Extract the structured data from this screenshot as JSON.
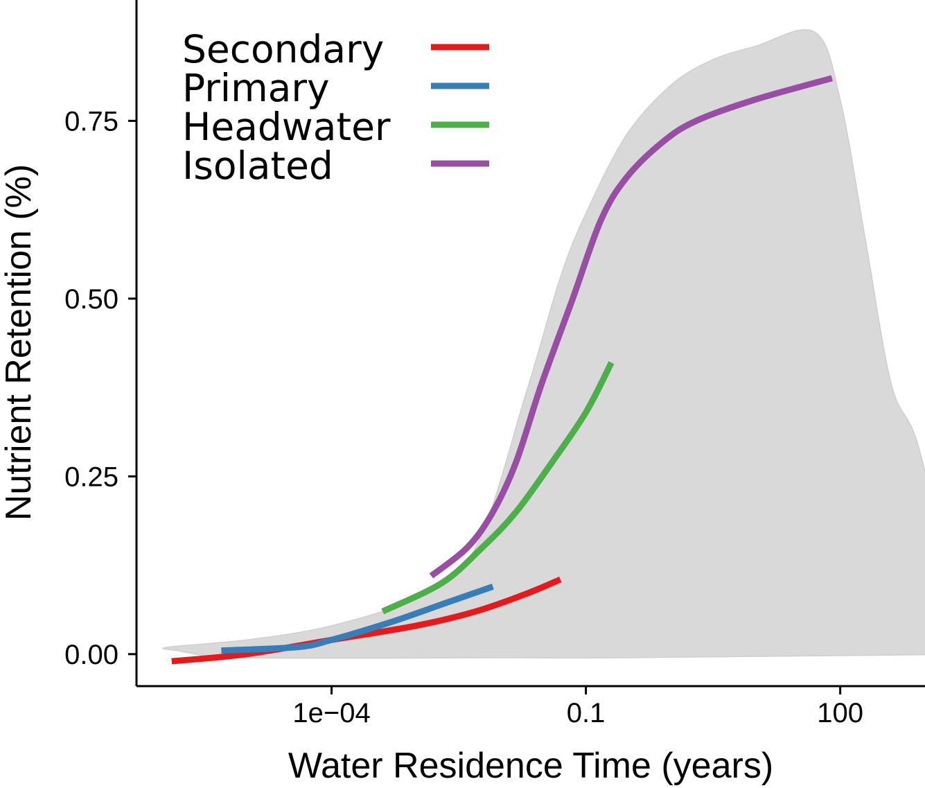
{
  "chart_data": {
    "type": "line",
    "title": "",
    "xlabel": "Water Residence Time (years)",
    "ylabel": "Nutrient Retention (%)",
    "x_scale": "log10",
    "xlim": [
      5e-07,
      1000
    ],
    "ylim": [
      -0.045,
      0.92
    ],
    "x_ticks": [
      {
        "value": 0.0001,
        "label": "1e−04"
      },
      {
        "value": 0.1,
        "label": "0.1"
      },
      {
        "value": 100,
        "label": "100"
      }
    ],
    "y_ticks": [
      {
        "value": 0.0,
        "label": "0.00"
      },
      {
        "value": 0.25,
        "label": "0.25"
      },
      {
        "value": 0.5,
        "label": "0.50"
      },
      {
        "value": 0.75,
        "label": "0.75"
      }
    ],
    "grid": false,
    "legend_position": "top-left",
    "band": {
      "color": "#d9d9d9",
      "polygon": [
        [
          1.2e-06,
          0.01
        ],
        [
          1e-05,
          0.02
        ],
        [
          0.0001,
          0.04
        ],
        [
          0.001,
          0.08
        ],
        [
          0.005,
          0.15
        ],
        [
          0.02,
          0.37
        ],
        [
          0.05,
          0.53
        ],
        [
          0.1,
          0.62
        ],
        [
          0.3,
          0.73
        ],
        [
          1,
          0.8
        ],
        [
          3,
          0.835
        ],
        [
          10,
          0.855
        ],
        [
          50,
          0.875
        ],
        [
          100,
          0.78
        ],
        [
          200,
          0.58
        ],
        [
          400,
          0.38
        ],
        [
          800,
          0.3
        ],
        [
          2000,
          0.12
        ],
        [
          5000,
          0.06
        ],
        [
          10000,
          0.04
        ],
        [
          20000,
          0.02
        ],
        [
          25000,
          0.0
        ],
        [
          5000,
          0.0
        ],
        [
          0.3,
          -0.005
        ],
        [
          0.01,
          -0.005
        ],
        [
          1e-05,
          -0.005
        ],
        [
          1.5e-06,
          0.005
        ]
      ]
    },
    "series": [
      {
        "name": "Secondary",
        "color": "#e41a1c",
        "points": [
          [
            1.3e-06,
            -0.01
          ],
          [
            1e-05,
            0.0
          ],
          [
            0.0001,
            0.02
          ],
          [
            0.001,
            0.04
          ],
          [
            0.005,
            0.06
          ],
          [
            0.02,
            0.085
          ],
          [
            0.05,
            0.105
          ]
        ]
      },
      {
        "name": "Primary",
        "color": "#377eb8",
        "points": [
          [
            5e-06,
            0.005
          ],
          [
            4e-05,
            0.01
          ],
          [
            0.0001,
            0.02
          ],
          [
            0.0005,
            0.045
          ],
          [
            0.002,
            0.07
          ],
          [
            0.008,
            0.095
          ]
        ]
      },
      {
        "name": "Headwater",
        "color": "#4daf4a",
        "points": [
          [
            0.0004,
            0.06
          ],
          [
            0.002,
            0.1
          ],
          [
            0.006,
            0.15
          ],
          [
            0.015,
            0.2
          ],
          [
            0.04,
            0.27
          ],
          [
            0.1,
            0.34
          ],
          [
            0.2,
            0.41
          ]
        ]
      },
      {
        "name": "Isolated",
        "color": "#984ea3",
        "points": [
          [
            0.0015,
            0.11
          ],
          [
            0.004,
            0.15
          ],
          [
            0.008,
            0.2
          ],
          [
            0.015,
            0.27
          ],
          [
            0.03,
            0.38
          ],
          [
            0.07,
            0.5
          ],
          [
            0.15,
            0.61
          ],
          [
            0.3,
            0.67
          ],
          [
            0.8,
            0.72
          ],
          [
            2,
            0.75
          ],
          [
            10,
            0.78
          ],
          [
            80,
            0.81
          ]
        ]
      }
    ]
  }
}
